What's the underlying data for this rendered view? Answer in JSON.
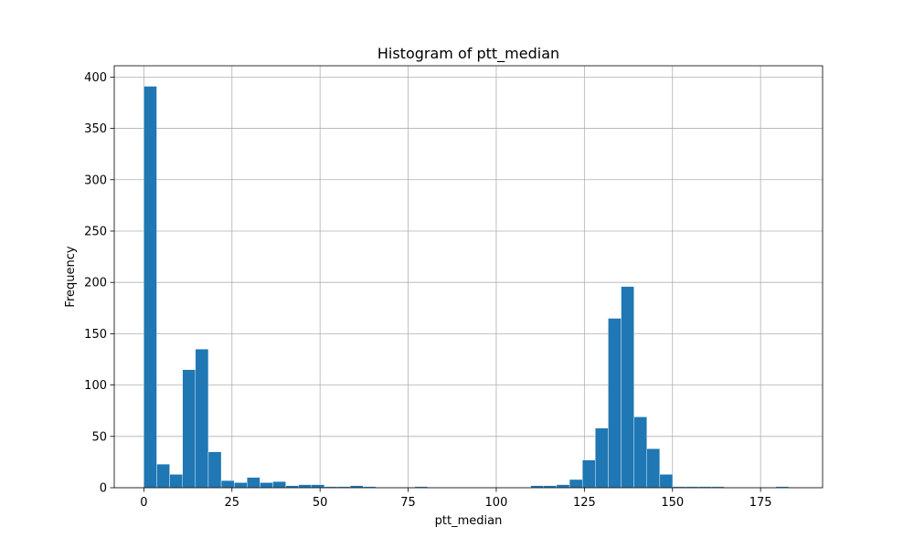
{
  "chart_data": {
    "type": "bar",
    "title": "Histogram of ptt_median",
    "xlabel": "ptt_median",
    "ylabel": "Frequency",
    "xlim": [
      -8.4,
      192.6
    ],
    "ylim": [
      0,
      411
    ],
    "xticks": [
      0,
      25,
      50,
      75,
      100,
      125,
      150,
      175
    ],
    "yticks": [
      0,
      50,
      100,
      150,
      200,
      250,
      300,
      350,
      400
    ],
    "grid": true,
    "bar_color": "#1f77b4",
    "bins": {
      "start": 0,
      "width": 3.66,
      "values": [
        391,
        23,
        13,
        115,
        135,
        35,
        7,
        5,
        10,
        5,
        6,
        2,
        3,
        3,
        1,
        1,
        2,
        1,
        0,
        0,
        0,
        1,
        0,
        0,
        0,
        0,
        0,
        0,
        0,
        0,
        2,
        2,
        3,
        8,
        27,
        58,
        165,
        196,
        69,
        38,
        13,
        1,
        1,
        1,
        1,
        0,
        0,
        0,
        0,
        1
      ]
    }
  }
}
